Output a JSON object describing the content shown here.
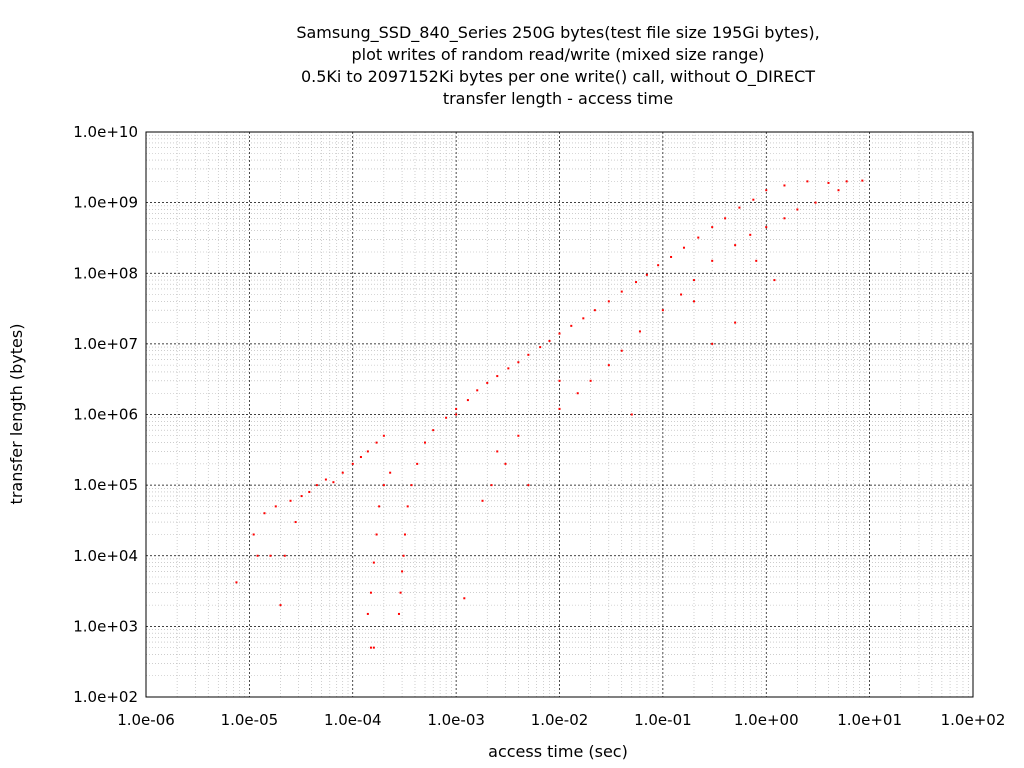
{
  "chart_data": {
    "type": "scatter",
    "title": [
      "Samsung_SSD_840_Series 250G bytes(test file size 195Gi bytes),",
      "plot writes of random read/write (mixed size range)",
      "0.5Ki to 2097152Ki bytes per one write() call, without O_DIRECT",
      "transfer length - access time"
    ],
    "xlabel": "access time (sec)",
    "ylabel": "transfer length (bytes)",
    "x_scale": "log",
    "y_scale": "log",
    "xlim": [
      1e-06,
      100
    ],
    "ylim": [
      100,
      10000000000.0
    ],
    "x_ticks": [
      {
        "value": 1e-06,
        "label": "1.0e-06"
      },
      {
        "value": 1e-05,
        "label": "1.0e-05"
      },
      {
        "value": 0.0001,
        "label": "1.0e-04"
      },
      {
        "value": 0.001,
        "label": "1.0e-03"
      },
      {
        "value": 0.01,
        "label": "1.0e-02"
      },
      {
        "value": 0.1,
        "label": "1.0e-01"
      },
      {
        "value": 1,
        "label": "1.0e+00"
      },
      {
        "value": 10,
        "label": "1.0e+01"
      },
      {
        "value": 100,
        "label": "1.0e+02"
      }
    ],
    "y_ticks": [
      {
        "value": 100,
        "label": "1.0e+02"
      },
      {
        "value": 1000,
        "label": "1.0e+03"
      },
      {
        "value": 10000,
        "label": "1.0e+04"
      },
      {
        "value": 100000,
        "label": "1.0e+05"
      },
      {
        "value": 1000000,
        "label": "1.0e+06"
      },
      {
        "value": 10000000,
        "label": "1.0e+07"
      },
      {
        "value": 100000000,
        "label": "1.0e+08"
      },
      {
        "value": 1000000000,
        "label": "1.0e+09"
      },
      {
        "value": 10000000000,
        "label": "1.0e+10"
      }
    ],
    "grid": true,
    "minor_grid": true,
    "marker_color": "#ff0000",
    "series": [
      {
        "points": [
          [
            7.5e-06,
            4200
          ],
          [
            1.2e-05,
            10000
          ],
          [
            1.1e-05,
            20000
          ],
          [
            1.4e-05,
            40000
          ],
          [
            1.6e-05,
            10000
          ],
          [
            1.8e-05,
            50000
          ],
          [
            2e-05,
            2000
          ],
          [
            2.2e-05,
            10000
          ],
          [
            2.5e-05,
            60000
          ],
          [
            2.8e-05,
            30000
          ],
          [
            3.2e-05,
            70000
          ],
          [
            3.8e-05,
            80000
          ],
          [
            4.5e-05,
            100000
          ],
          [
            5.5e-05,
            120000
          ],
          [
            6.5e-05,
            110000
          ],
          [
            8e-05,
            150000
          ],
          [
            0.0001,
            200000
          ],
          [
            0.00012,
            250000
          ],
          [
            0.00014,
            300000
          ],
          [
            0.00017,
            400000
          ],
          [
            0.0002,
            500000
          ],
          [
            0.00015,
            500
          ],
          [
            0.00016,
            500
          ],
          [
            0.00014,
            1500
          ],
          [
            0.00015,
            3000
          ],
          [
            0.00016,
            8000
          ],
          [
            0.00017,
            20000
          ],
          [
            0.00018,
            50000
          ],
          [
            0.0002,
            100000
          ],
          [
            0.00023,
            150000
          ],
          [
            0.00028,
            1500
          ],
          [
            0.00029,
            3000
          ],
          [
            0.0003,
            6000
          ],
          [
            0.00031,
            10000
          ],
          [
            0.00032,
            20000
          ],
          [
            0.00034,
            50000
          ],
          [
            0.00037,
            100000
          ],
          [
            0.00042,
            200000
          ],
          [
            0.0005,
            400000
          ],
          [
            0.0006,
            600000
          ],
          [
            0.0008,
            900000
          ],
          [
            0.001,
            1200000
          ],
          [
            0.0013,
            1600000
          ],
          [
            0.0016,
            2200000
          ],
          [
            0.002,
            2800000
          ],
          [
            0.0025,
            3500000
          ],
          [
            0.0032,
            4500000
          ],
          [
            0.004,
            5500000
          ],
          [
            0.005,
            7000000
          ],
          [
            0.0065,
            9000000
          ],
          [
            0.008,
            11000000
          ],
          [
            0.01,
            14000000
          ],
          [
            0.013,
            18000000
          ],
          [
            0.017,
            23000000
          ],
          [
            0.022,
            30000000
          ],
          [
            0.03,
            40000000
          ],
          [
            0.04,
            55000000
          ],
          [
            0.055,
            75000000
          ],
          [
            0.07,
            95000000
          ],
          [
            0.09,
            130000000
          ],
          [
            0.12,
            170000000
          ],
          [
            0.16,
            230000000
          ],
          [
            0.22,
            320000000
          ],
          [
            0.3,
            450000000
          ],
          [
            0.4,
            600000000
          ],
          [
            0.55,
            850000000
          ],
          [
            0.75,
            1100000000
          ],
          [
            1.0,
            1500000000
          ],
          [
            1.5,
            1750000000
          ],
          [
            2.5,
            2000000000
          ],
          [
            4.0,
            1900000000
          ],
          [
            6.0,
            2000000000
          ],
          [
            8.5,
            2050000000
          ],
          [
            5.0,
            1500000000
          ],
          [
            3.0,
            1000000000
          ],
          [
            2.0,
            800000000
          ],
          [
            1.5,
            600000000
          ],
          [
            1.0,
            450000000
          ],
          [
            0.7,
            350000000
          ],
          [
            0.5,
            250000000
          ],
          [
            0.3,
            150000000
          ],
          [
            0.2,
            80000000
          ],
          [
            0.15,
            50000000
          ],
          [
            0.1,
            30000000
          ],
          [
            0.06,
            15000000
          ],
          [
            0.04,
            8000000
          ],
          [
            0.03,
            5000000
          ],
          [
            0.02,
            3000000
          ],
          [
            0.015,
            2000000
          ],
          [
            0.01,
            1200000
          ],
          [
            0.004,
            500000
          ],
          [
            0.003,
            200000
          ],
          [
            0.005,
            100000
          ],
          [
            0.0022,
            100000
          ],
          [
            0.0018,
            60000
          ],
          [
            0.0025,
            300000
          ],
          [
            0.001,
            1000000
          ],
          [
            0.01,
            3000000
          ],
          [
            0.05,
            1000000
          ],
          [
            0.2,
            40000000
          ],
          [
            0.3,
            10000000
          ],
          [
            0.5,
            20000000
          ],
          [
            1.2,
            80000000
          ],
          [
            0.8,
            150000000
          ],
          [
            0.0012,
            2500
          ]
        ]
      }
    ]
  }
}
